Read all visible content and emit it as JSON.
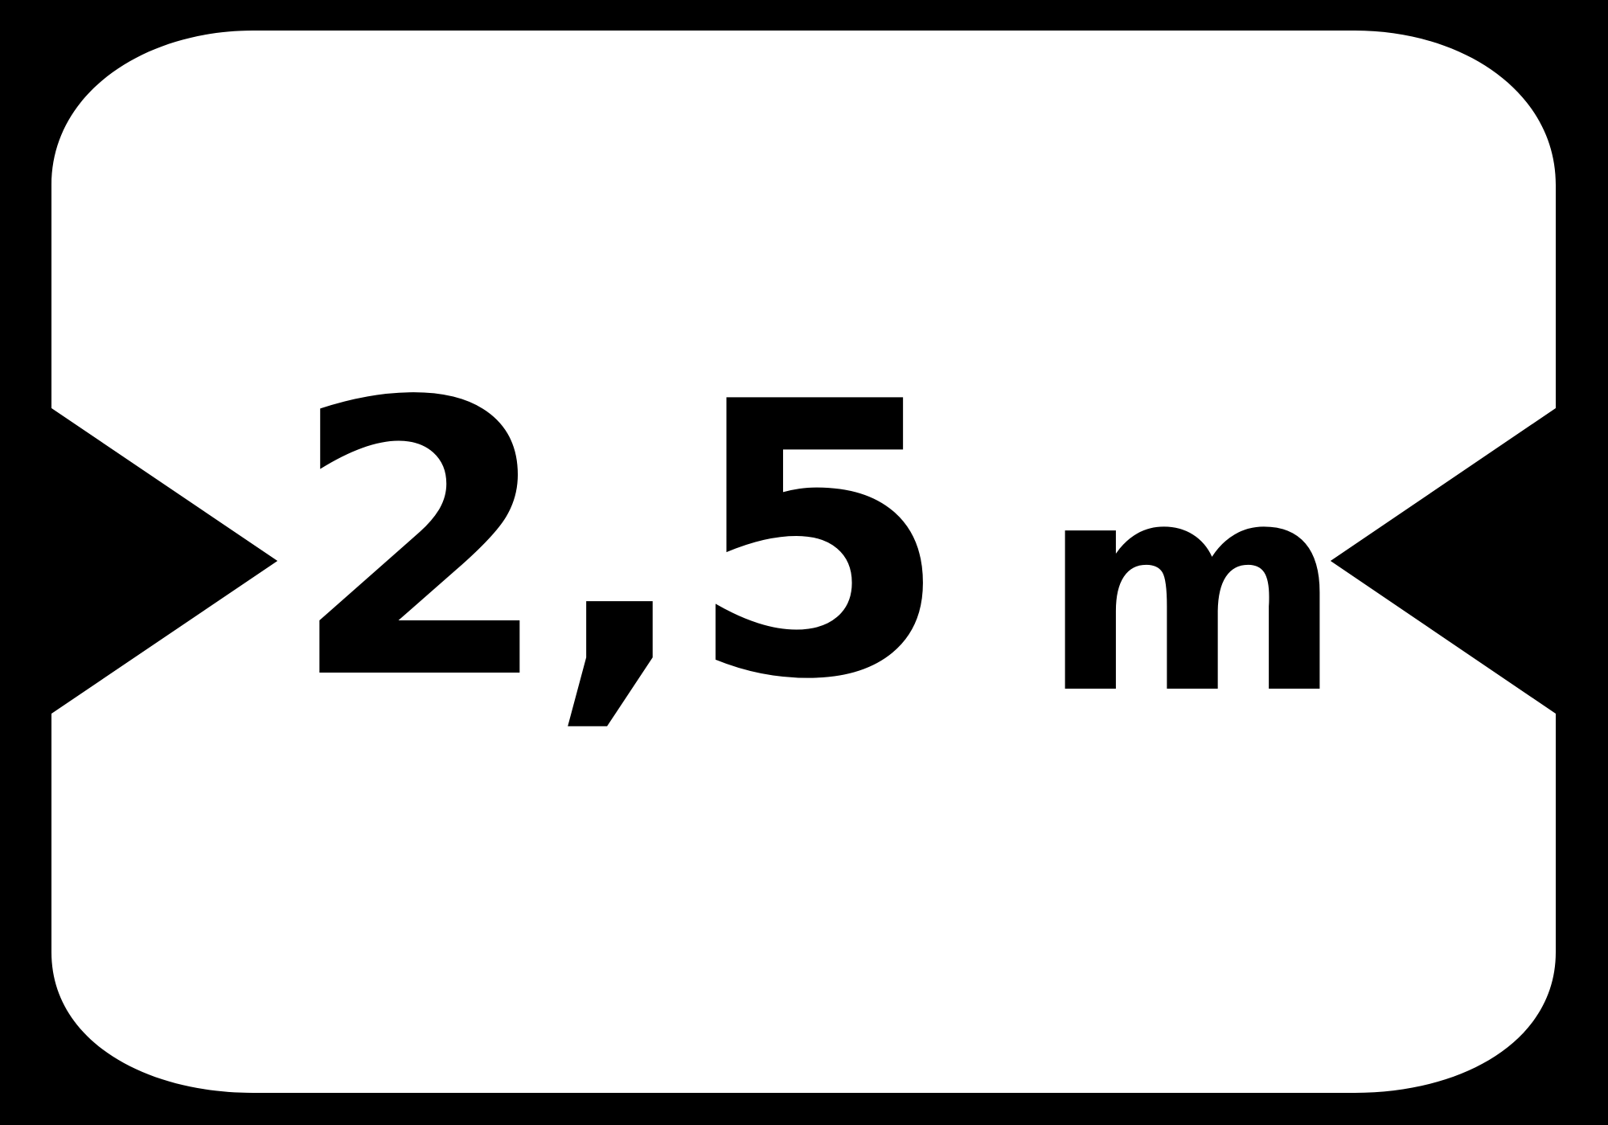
{
  "sign": {
    "value": "2,5",
    "unit": "m",
    "colors": {
      "background": "#000000",
      "plate": "#ffffff",
      "text": "#000000"
    },
    "icon": "width-restriction-arrows-icon"
  }
}
